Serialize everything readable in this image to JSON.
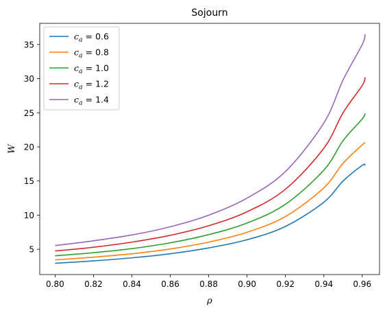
{
  "chart_data": {
    "type": "line",
    "title": "Sojourn",
    "xlabel": "ρ",
    "ylabel": "W",
    "xlim": [
      0.792,
      0.969
    ],
    "ylim": [
      1.3,
      38.1
    ],
    "xticks": [
      0.8,
      0.82,
      0.84,
      0.86,
      0.88,
      0.9,
      0.92,
      0.94,
      0.96
    ],
    "xtick_labels": [
      "0.80",
      "0.82",
      "0.84",
      "0.86",
      "0.88",
      "0.90",
      "0.92",
      "0.94",
      "0.96"
    ],
    "yticks": [
      5,
      10,
      15,
      20,
      25,
      30,
      35
    ],
    "ytick_labels": [
      "5",
      "10",
      "15",
      "20",
      "25",
      "30",
      "35"
    ],
    "grid": false,
    "legend_position": "top-left",
    "x": [
      0.8,
      0.82,
      0.84,
      0.86,
      0.88,
      0.9,
      0.92,
      0.94,
      0.95,
      0.96,
      0.9615
    ],
    "series": [
      {
        "name": "c_a = 0.6",
        "legend_prefix": "c",
        "legend_subscript": "a",
        "legend_suffix": " = 0.6",
        "color": "#1f77b4",
        "values": [
          2.95,
          3.3,
          3.75,
          4.35,
          5.2,
          6.4,
          8.35,
          11.9,
          15.0,
          17.3,
          17.3
        ]
      },
      {
        "name": "c_a = 0.8",
        "legend_prefix": "c",
        "legend_subscript": "a",
        "legend_suffix": " = 0.8",
        "color": "#ff7f0e",
        "values": [
          3.45,
          3.85,
          4.35,
          5.05,
          6.05,
          7.5,
          9.8,
          14.0,
          17.6,
          20.3,
          20.6
        ]
      },
      {
        "name": "c_a = 1.0",
        "legend_prefix": "c",
        "legend_subscript": "a",
        "legend_suffix": " = 1.0",
        "color": "#2ca02c",
        "values": [
          4.05,
          4.5,
          5.1,
          5.95,
          7.15,
          8.85,
          11.6,
          16.6,
          20.9,
          24.1,
          24.9
        ]
      },
      {
        "name": "c_a = 1.2",
        "legend_prefix": "c",
        "legend_subscript": "a",
        "legend_suffix": " = 1.2",
        "color": "#d62728",
        "values": [
          4.75,
          5.3,
          6.05,
          7.05,
          8.45,
          10.5,
          13.8,
          19.8,
          25.0,
          29.0,
          30.2
        ]
      },
      {
        "name": "c_a = 1.4",
        "legend_prefix": "c",
        "legend_subscript": "a",
        "legend_suffix": " = 1.4",
        "color": "#9467bd",
        "values": [
          5.55,
          6.25,
          7.1,
          8.3,
          10.0,
          12.5,
          16.4,
          23.5,
          29.8,
          35.0,
          36.5
        ]
      }
    ]
  }
}
